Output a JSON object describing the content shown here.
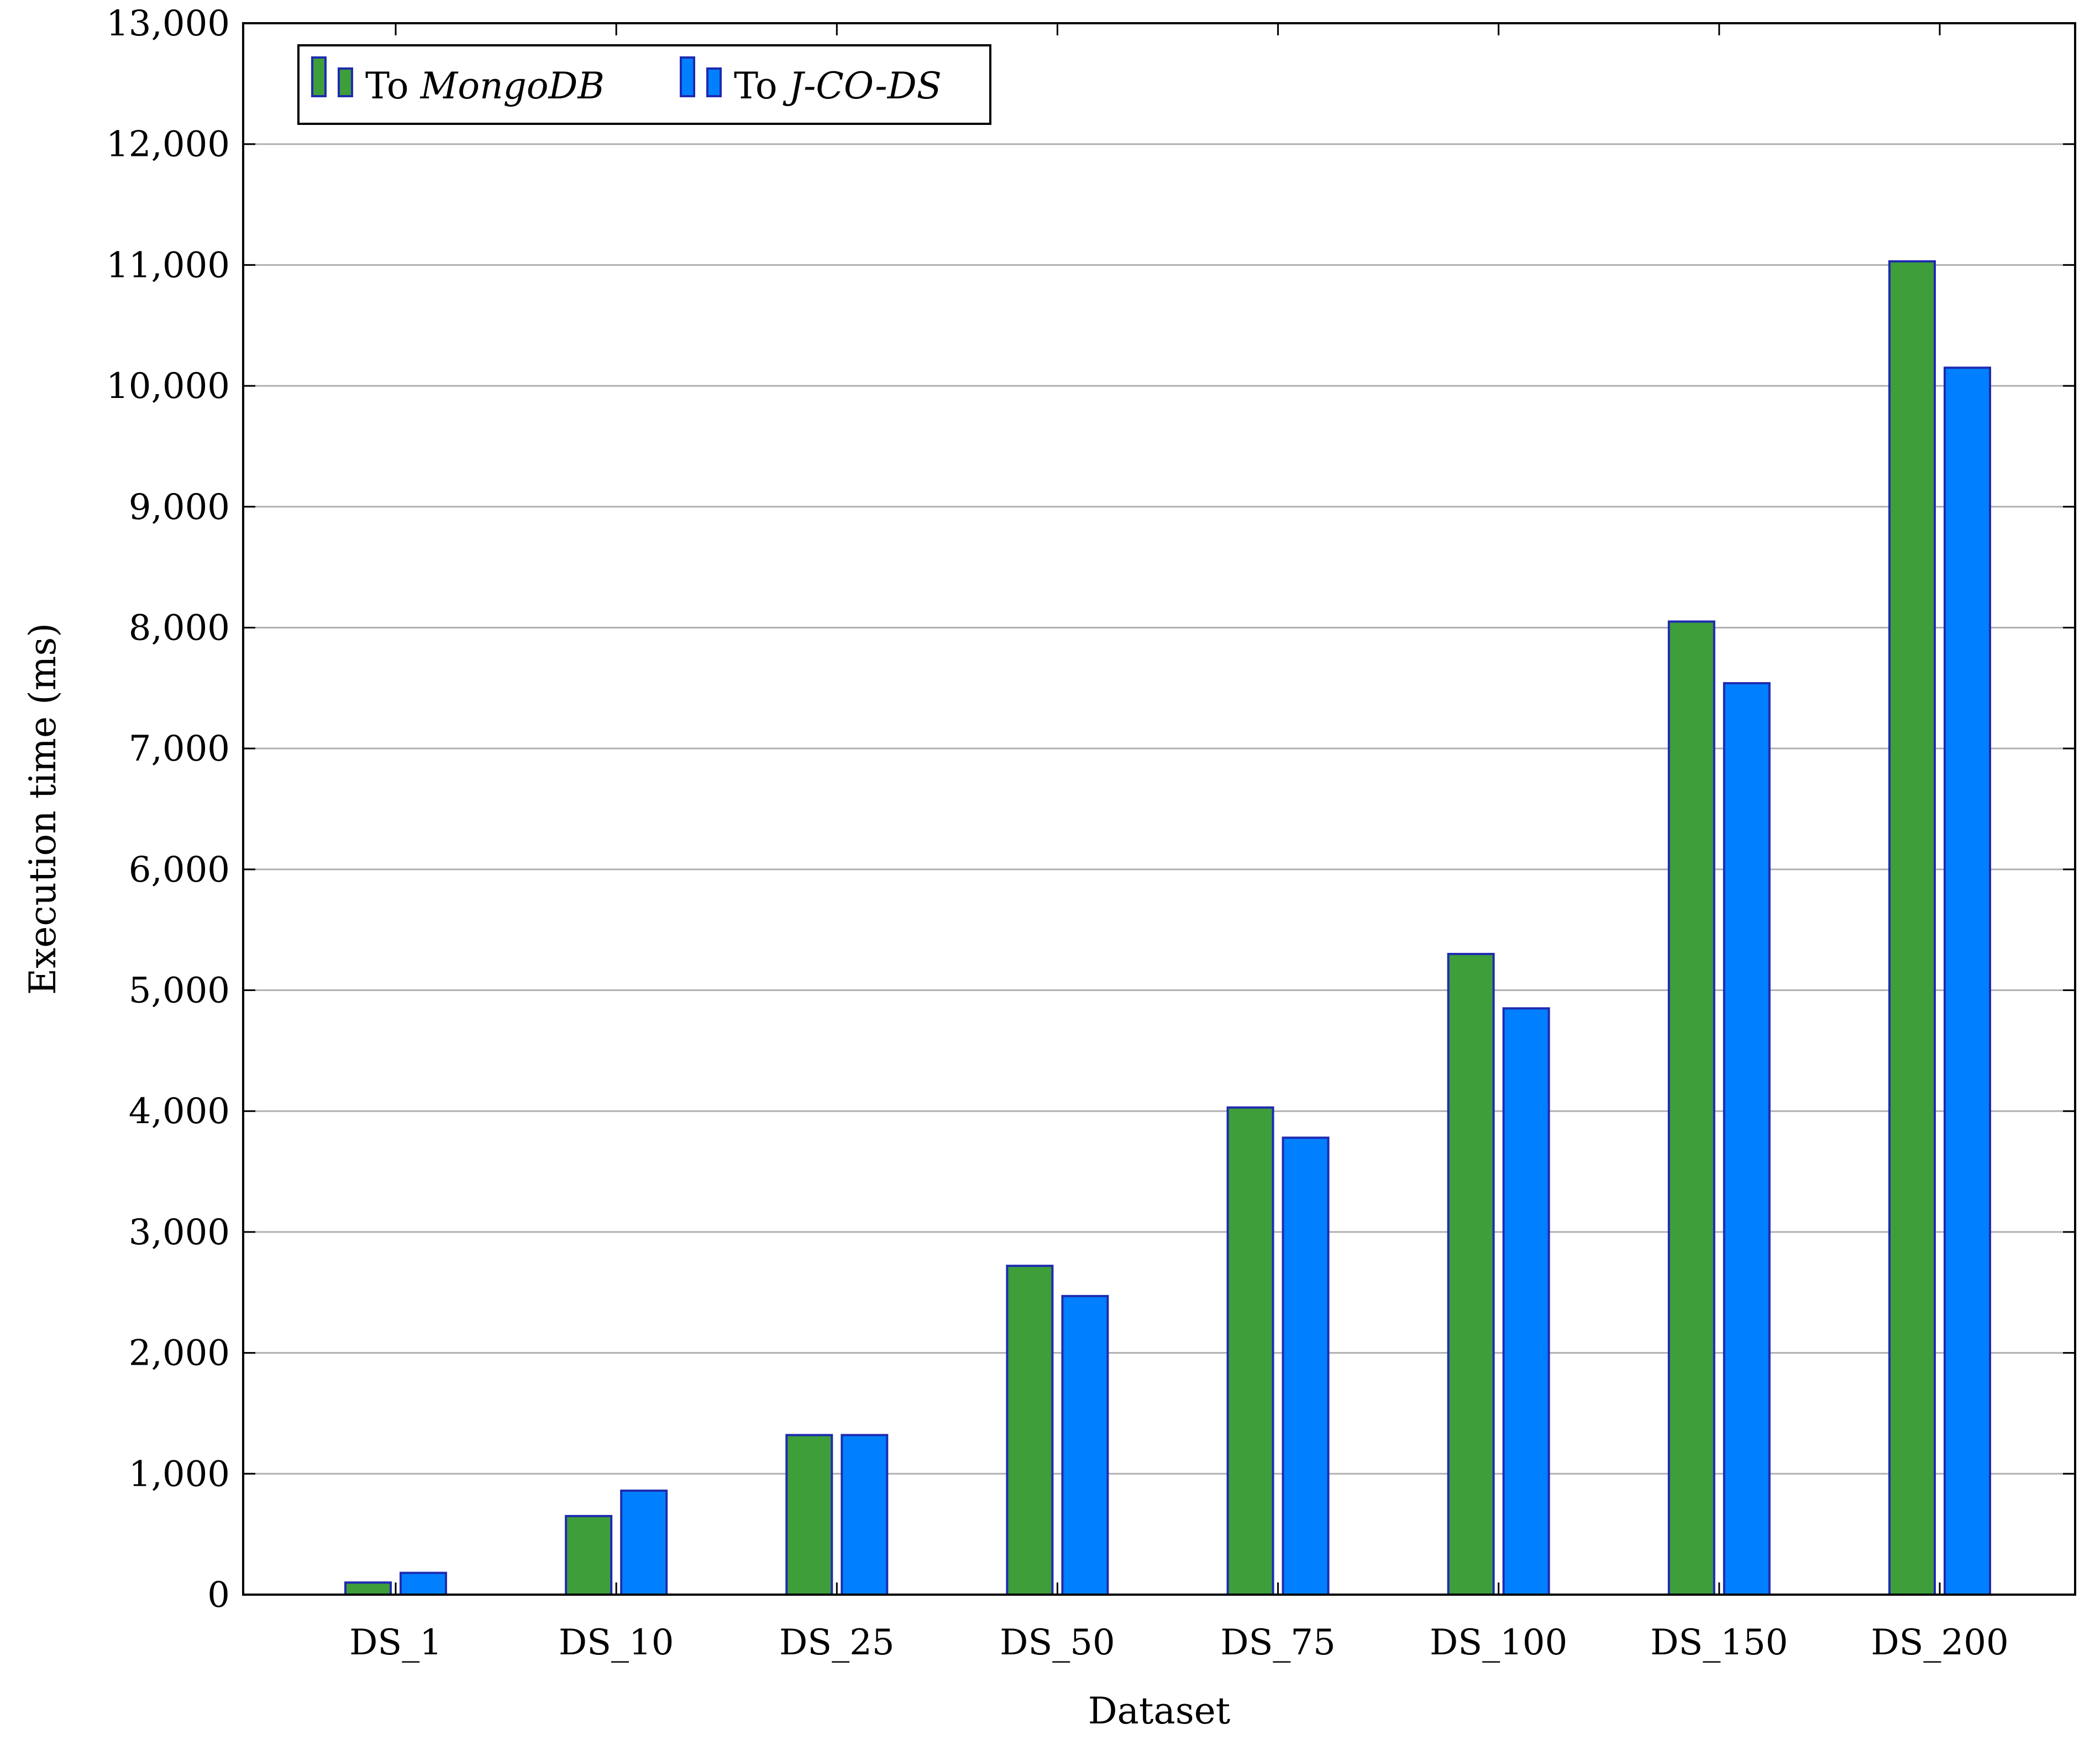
{
  "chart_data": {
    "type": "bar",
    "title": "",
    "xlabel": "Dataset",
    "ylabel": "Execution time (ms)",
    "ylim": [
      0,
      13000
    ],
    "yticks": [
      0,
      1000,
      2000,
      3000,
      4000,
      5000,
      6000,
      7000,
      8000,
      9000,
      10000,
      11000,
      12000,
      13000
    ],
    "ytick_labels": [
      "0",
      "1,000",
      "2,000",
      "3,000",
      "4,000",
      "5,000",
      "6,000",
      "7,000",
      "8,000",
      "9,000",
      "10,000",
      "11,000",
      "12,000",
      "13,000"
    ],
    "categories": [
      "DS_1",
      "DS_10",
      "DS_25",
      "DS_50",
      "DS_75",
      "DS_100",
      "DS_150",
      "DS_200"
    ],
    "series": [
      {
        "name": "To MongoDB",
        "prefix": "To ",
        "emph": "MongoDB",
        "color": "#3d9e3a",
        "values": [
          100,
          650,
          1320,
          2720,
          4030,
          5300,
          8050,
          11030
        ]
      },
      {
        "name": "To J-CO-DS",
        "prefix": "To ",
        "emph": "J-CO-DS",
        "color": "#0080ff",
        "values": [
          180,
          860,
          1320,
          2470,
          3780,
          4850,
          7540,
          10150
        ]
      }
    ],
    "grid": true,
    "legend_position": "top-left",
    "bar_edge_color": "#1f2bb0"
  }
}
